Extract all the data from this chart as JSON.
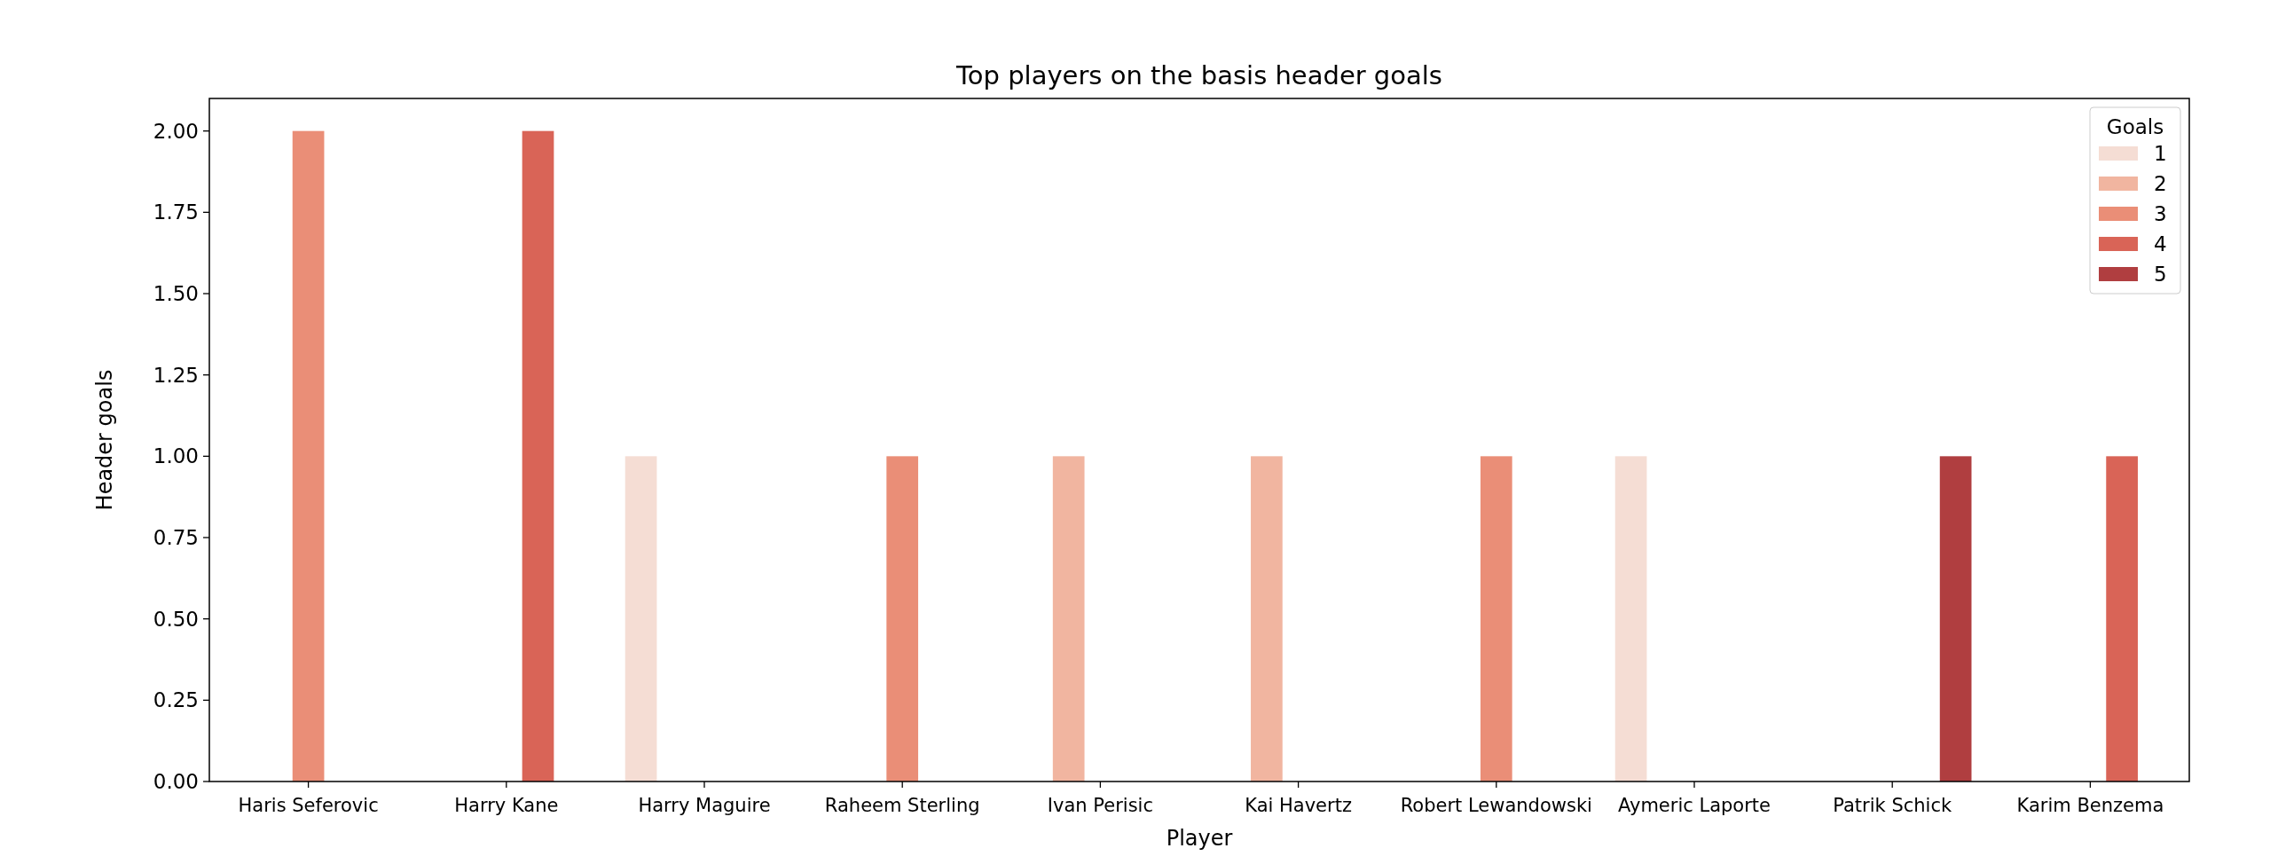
{
  "chart_data": {
    "type": "bar",
    "title": "Top players on the basis header goals",
    "xlabel": "Player",
    "ylabel": "Header goals",
    "legend_title": "Goals",
    "categories": [
      "Haris Seferovic",
      "Harry Kane",
      "Harry Maguire",
      "Raheem Sterling",
      "Ivan Perisic",
      "Kai Havertz",
      "Robert Lewandowski",
      "Aymeric Laporte",
      "Patrik Schick",
      "Karim Benzema"
    ],
    "series": [
      {
        "name": "1",
        "color": "#f5ddd4",
        "values": [
          null,
          null,
          1,
          null,
          null,
          null,
          null,
          1,
          null,
          null
        ]
      },
      {
        "name": "2",
        "color": "#f1b5a0",
        "values": [
          null,
          null,
          null,
          null,
          1,
          1,
          null,
          null,
          null,
          null
        ]
      },
      {
        "name": "3",
        "color": "#ea8e77",
        "values": [
          2,
          null,
          null,
          1,
          null,
          null,
          1,
          null,
          null,
          null
        ]
      },
      {
        "name": "4",
        "color": "#d96457",
        "values": [
          null,
          2,
          null,
          null,
          null,
          null,
          null,
          null,
          null,
          1
        ]
      },
      {
        "name": "5",
        "color": "#b03e40",
        "values": [
          null,
          null,
          null,
          null,
          null,
          null,
          null,
          null,
          1,
          null
        ]
      }
    ],
    "ylim": [
      0,
      2.1
    ],
    "yticks": [
      {
        "value": 0,
        "label": "0.00"
      },
      {
        "value": 0.25,
        "label": "0.25"
      },
      {
        "value": 0.5,
        "label": "0.50"
      },
      {
        "value": 0.75,
        "label": "0.75"
      },
      {
        "value": 1,
        "label": "1.00"
      },
      {
        "value": 1.25,
        "label": "1.25"
      },
      {
        "value": 1.5,
        "label": "1.50"
      },
      {
        "value": 1.75,
        "label": "1.75"
      },
      {
        "value": 2,
        "label": "2.00"
      }
    ],
    "legend": "top right"
  }
}
